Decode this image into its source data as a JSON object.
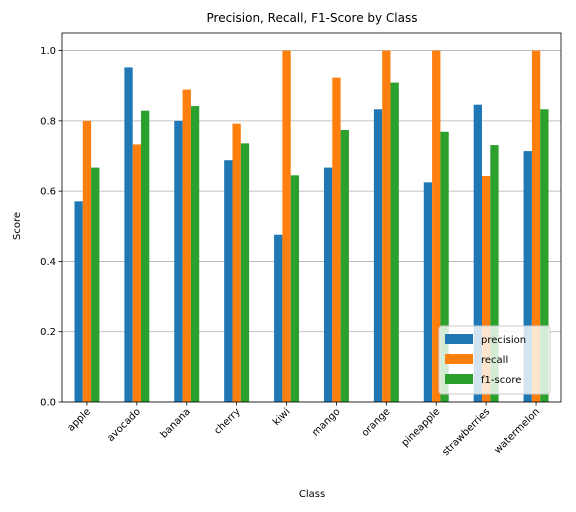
{
  "chart_data": {
    "type": "bar",
    "title": "Precision, Recall, F1-Score by Class",
    "xlabel": "Class",
    "ylabel": "Score",
    "ylim": [
      0,
      1.05
    ],
    "yticks": [
      "0.0",
      "0.2",
      "0.4",
      "0.6",
      "0.8",
      "1.0"
    ],
    "grid": "y",
    "legend_position": "lower-right",
    "categories": [
      "apple",
      "avocado",
      "banana",
      "cherry",
      "kiwi",
      "mango",
      "orange",
      "pineapple",
      "strawberries",
      "watermelon"
    ],
    "series": [
      {
        "name": "precision",
        "color": "#1f77b4",
        "values": [
          0.571,
          0.952,
          0.8,
          0.688,
          0.476,
          0.667,
          0.833,
          0.625,
          0.846,
          0.714
        ]
      },
      {
        "name": "recall",
        "color": "#ff7f0e",
        "values": [
          0.8,
          0.733,
          0.889,
          0.792,
          1.0,
          0.923,
          1.0,
          1.0,
          0.643,
          1.0
        ]
      },
      {
        "name": "f1-score",
        "color": "#2ca02c",
        "values": [
          0.667,
          0.829,
          0.842,
          0.736,
          0.645,
          0.774,
          0.909,
          0.769,
          0.731,
          0.833
        ]
      }
    ]
  }
}
